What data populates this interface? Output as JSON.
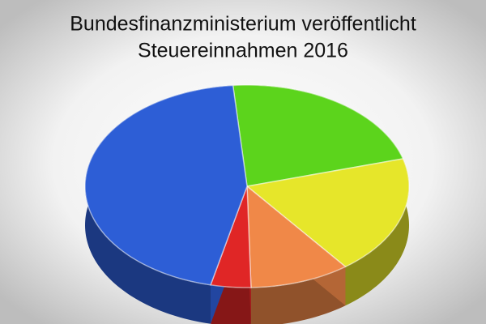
{
  "chart_data": {
    "type": "pie",
    "title": [
      "Bundesfinanzministerium veröffentlicht",
      "Steuereinnahmen 2016"
    ],
    "values": [
      22,
      19,
      10,
      4,
      45
    ],
    "colors": [
      "#5cd41c",
      "#e6e62a",
      "#f08848",
      "#e02626",
      "#2d5ed6"
    ]
  }
}
